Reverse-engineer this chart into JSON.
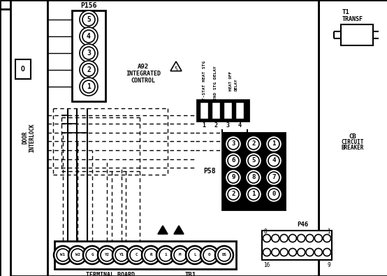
{
  "bg_color": "#ffffff",
  "p156_label": "P156",
  "p156_pins": [
    "5",
    "4",
    "3",
    "2",
    "1"
  ],
  "a92_label": "A92\nINTEGRATED\nCONTROL",
  "relay_labels": [
    "T-STAT HEAT STG",
    "2ND STG DELAY",
    "HEAT OFF\nDELAY"
  ],
  "relay_numbers": [
    "1",
    "2",
    "3",
    "4"
  ],
  "p58_label": "P58",
  "p58_pins": [
    [
      "3",
      "2",
      "1"
    ],
    [
      "6",
      "5",
      "4"
    ],
    [
      "9",
      "8",
      "7"
    ],
    [
      "2",
      "1",
      "0"
    ]
  ],
  "p46_label": "P46",
  "p46_nums": [
    "8",
    "1",
    "16",
    "9"
  ],
  "tb1_pins": [
    "W1",
    "W2",
    "G",
    "Y2",
    "Y1",
    "C",
    "R",
    "1",
    "M",
    "L",
    "O",
    "DS"
  ],
  "tb1_label": "TERMINAL BOARD",
  "tb1_label2": "TB1",
  "t1_label": "T1\nTRANSF",
  "cb_label": "CB\nCIRCUIT\nBREAKER",
  "interlock_label": "DOOR\nINTERLOCK"
}
